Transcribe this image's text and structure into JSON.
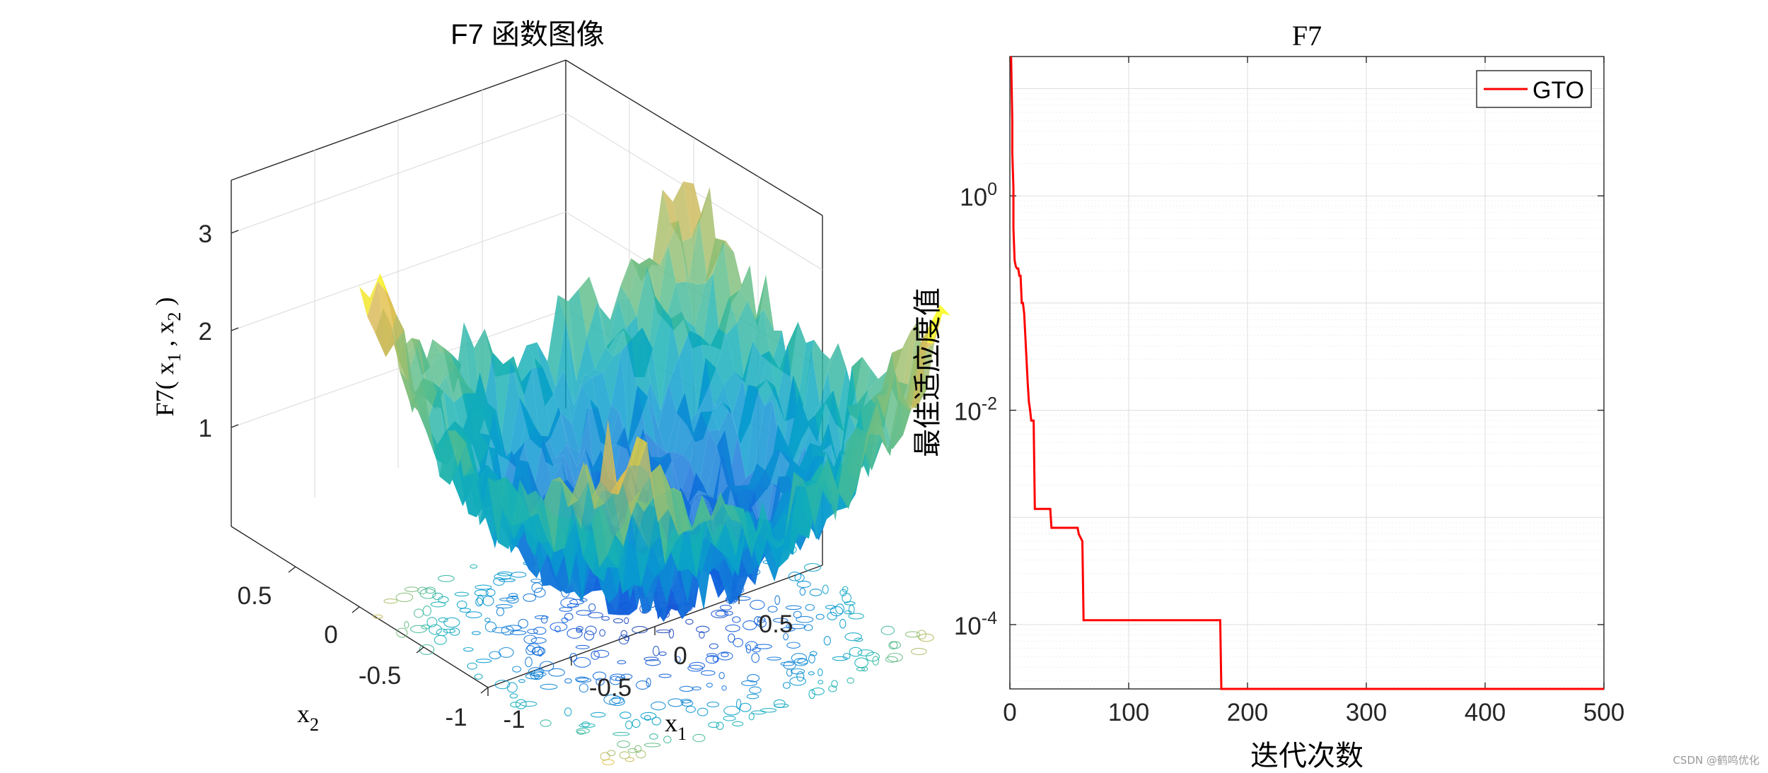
{
  "left_panel": {
    "title": "F7 函数图像",
    "xlabel_base": "x",
    "xlabel_sub": "1",
    "ylabel_base": "x",
    "ylabel_sub": "2",
    "zlabel_prefix": "F7( x",
    "zlabel_sub1": "1",
    "zlabel_mid": " , x",
    "zlabel_sub2": "2",
    "zlabel_suffix": " )",
    "z_ticks": [
      "1",
      "2",
      "3"
    ],
    "x1_ticks": [
      "-1",
      "-0.5",
      "0",
      "0.5"
    ],
    "x2_ticks": [
      "0.5",
      "0",
      "-0.5",
      "-1"
    ]
  },
  "chart_data": [
    {
      "type": "surface",
      "title": "F7 函数图像",
      "xlabel": "x1",
      "ylabel": "x2",
      "zlabel": "F7( x1 , x2 )",
      "xlim": [
        -1,
        1
      ],
      "ylim": [
        -1,
        1
      ],
      "zlim": [
        0,
        3.6
      ],
      "z_ticks": [
        1,
        2,
        3
      ],
      "surface_trend": "bowl-shaped noisy surface: minimum near x1=0,x2=0, rising to about 3.5 at the corners",
      "colormap": "parula",
      "contour_projection": true,
      "grid": "on"
    },
    {
      "type": "line",
      "title": "F7",
      "xlabel": "迭代次数",
      "ylabel": "最佳适应度值",
      "xlim": [
        0,
        500
      ],
      "ylim_exponent": [
        -4.6,
        1.3
      ],
      "yscale": "log",
      "x_ticks": [
        "0",
        "100",
        "200",
        "300",
        "400",
        "500"
      ],
      "y_tick_bases": [
        "10",
        "10",
        "10"
      ],
      "y_tick_exponents": [
        "0",
        "-2",
        "-4"
      ],
      "y_tick_values": [
        1,
        0.01,
        0.0001
      ],
      "grid": "on",
      "legend_position": "top-right",
      "series": [
        {
          "name": "GTO",
          "color": "#ff0000",
          "x": [
            1,
            2,
            2,
            3,
            3,
            4,
            5,
            6,
            7,
            8,
            9,
            10,
            11,
            12,
            13,
            14,
            15,
            16,
            17,
            18,
            20,
            21,
            34,
            35,
            57,
            58,
            61,
            62,
            177,
            178,
            500
          ],
          "y": [
            20,
            5,
            2.5,
            1.2,
            0.5,
            0.25,
            0.22,
            0.21,
            0.21,
            0.18,
            0.18,
            0.1,
            0.1,
            0.08,
            0.05,
            0.03,
            0.018,
            0.012,
            0.01,
            0.008,
            0.008,
            0.0012,
            0.0012,
            0.0008,
            0.0008,
            0.0007,
            0.0006,
            0.00011,
            0.00011,
            2.1e-05,
            2.1e-05
          ]
        }
      ]
    }
  ],
  "watermark": "CSDN @鹤鸣优化"
}
